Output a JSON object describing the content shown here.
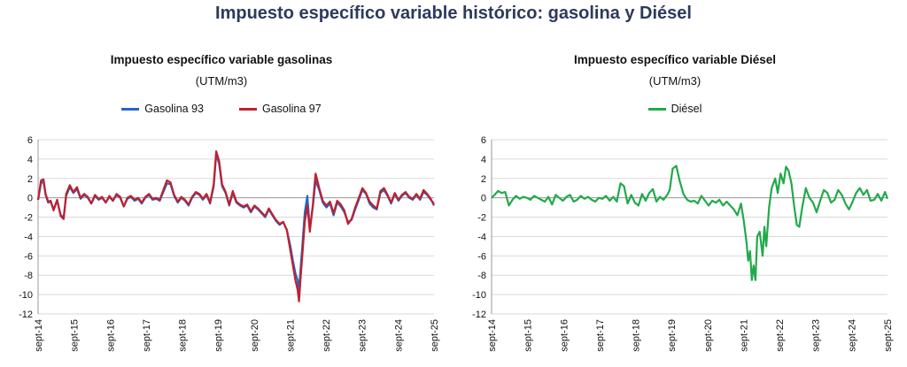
{
  "title": "Impuesto específico variable histórico: gasolina y Diésel",
  "chart_data": [
    {
      "type": "line",
      "title": "Impuesto específico variable gasolinas",
      "subtitle": "(UTM/m3)",
      "xlabel": "",
      "ylabel": "",
      "x_ticks": [
        "sept-14",
        "sept-15",
        "sept-16",
        "sept-17",
        "sept-18",
        "sept-19",
        "sept-20",
        "sept-21",
        "sept-22",
        "sept-23",
        "sept-24",
        "sept-25"
      ],
      "xlim": [
        2014.67,
        2025.67
      ],
      "ylim": [
        -12,
        6
      ],
      "y_ticks": [
        6,
        4,
        2,
        0,
        -2,
        -4,
        -6,
        -8,
        -10,
        -12
      ],
      "grid": true,
      "legend_position": "top",
      "series": [
        {
          "name": "Gasolina 93",
          "color": "#2166c4",
          "x": [
            2014.67,
            2014.75,
            2014.82,
            2014.88,
            2014.95,
            2015.02,
            2015.1,
            2015.2,
            2015.3,
            2015.38,
            2015.45,
            2015.55,
            2015.65,
            2015.75,
            2015.85,
            2015.95,
            2016.05,
            2016.15,
            2016.25,
            2016.35,
            2016.45,
            2016.55,
            2016.65,
            2016.75,
            2016.85,
            2016.95,
            2017.05,
            2017.15,
            2017.25,
            2017.35,
            2017.45,
            2017.55,
            2017.65,
            2017.75,
            2017.85,
            2017.95,
            2018.05,
            2018.15,
            2018.25,
            2018.35,
            2018.45,
            2018.55,
            2018.65,
            2018.75,
            2018.85,
            2018.95,
            2019.05,
            2019.15,
            2019.25,
            2019.35,
            2019.45,
            2019.55,
            2019.62,
            2019.7,
            2019.78,
            2019.88,
            2019.98,
            2020.08,
            2020.18,
            2020.28,
            2020.38,
            2020.48,
            2020.58,
            2020.68,
            2020.78,
            2020.88,
            2020.98,
            2021.08,
            2021.18,
            2021.28,
            2021.38,
            2021.48,
            2021.58,
            2021.68,
            2021.75,
            2021.82,
            2021.88,
            2021.92,
            2021.97,
            2022.02,
            2022.08,
            2022.15,
            2022.22,
            2022.3,
            2022.38,
            2022.48,
            2022.58,
            2022.68,
            2022.78,
            2022.88,
            2022.98,
            2023.08,
            2023.18,
            2023.28,
            2023.38,
            2023.48,
            2023.58,
            2023.68,
            2023.78,
            2023.88,
            2023.98,
            2024.08,
            2024.18,
            2024.28,
            2024.38,
            2024.48,
            2024.58,
            2024.68,
            2024.78,
            2024.88,
            2024.98,
            2025.08,
            2025.18,
            2025.28,
            2025.38,
            2025.48,
            2025.58,
            2025.67
          ],
          "y": [
            -0.2,
            1.5,
            1.7,
            0.3,
            -0.5,
            -0.4,
            -1.2,
            -0.3,
            -1.8,
            -2.0,
            0.2,
            1.1,
            0.5,
            0.9,
            -0.1,
            0.3,
            0.0,
            -0.6,
            0.2,
            -0.2,
            0.0,
            -0.5,
            0.1,
            -0.3,
            0.3,
            0.0,
            -0.9,
            -0.1,
            0.1,
            -0.3,
            -0.1,
            -0.6,
            0.0,
            0.3,
            -0.2,
            -0.1,
            -0.3,
            0.6,
            1.5,
            1.4,
            0.2,
            -0.5,
            0.0,
            -0.3,
            -0.8,
            0.0,
            0.5,
            0.3,
            -0.2,
            0.3,
            -0.6,
            1.2,
            4.5,
            3.5,
            1.2,
            0.5,
            -0.8,
            0.5,
            -0.5,
            -0.8,
            -1.0,
            -0.8,
            -1.5,
            -0.9,
            -1.2,
            -1.6,
            -2.0,
            -1.2,
            -1.8,
            -2.4,
            -2.8,
            -2.5,
            -3.3,
            -5.0,
            -6.5,
            -7.8,
            -8.5,
            -9.5,
            -7.0,
            -4.5,
            -1.5,
            0.2,
            -3.2,
            -1.0,
            1.8,
            0.8,
            -0.5,
            -1.0,
            -0.6,
            -1.8,
            -0.5,
            -0.9,
            -1.5,
            -2.5,
            -2.3,
            -1.2,
            -0.2,
            0.8,
            0.4,
            -0.6,
            -1.0,
            -1.2,
            0.5,
            0.8,
            0.2,
            -0.6,
            0.4,
            -0.3,
            0.2,
            0.5,
            0.0,
            -0.2,
            0.3,
            -0.2,
            0.6,
            0.3,
            -0.2,
            -0.6
          ]
        },
        {
          "name": "Gasolina 97",
          "color": "#c0202e",
          "x": [
            2014.67,
            2014.75,
            2014.82,
            2014.88,
            2014.95,
            2015.02,
            2015.1,
            2015.2,
            2015.3,
            2015.38,
            2015.45,
            2015.55,
            2015.65,
            2015.75,
            2015.85,
            2015.95,
            2016.05,
            2016.15,
            2016.25,
            2016.35,
            2016.45,
            2016.55,
            2016.65,
            2016.75,
            2016.85,
            2016.95,
            2017.05,
            2017.15,
            2017.25,
            2017.35,
            2017.45,
            2017.55,
            2017.65,
            2017.75,
            2017.85,
            2017.95,
            2018.05,
            2018.15,
            2018.25,
            2018.35,
            2018.45,
            2018.55,
            2018.65,
            2018.75,
            2018.85,
            2018.95,
            2019.05,
            2019.15,
            2019.25,
            2019.35,
            2019.45,
            2019.55,
            2019.62,
            2019.7,
            2019.78,
            2019.88,
            2019.98,
            2020.08,
            2020.18,
            2020.28,
            2020.38,
            2020.48,
            2020.58,
            2020.68,
            2020.78,
            2020.88,
            2020.98,
            2021.08,
            2021.18,
            2021.28,
            2021.38,
            2021.48,
            2021.58,
            2021.68,
            2021.75,
            2021.82,
            2021.88,
            2021.92,
            2021.97,
            2022.02,
            2022.08,
            2022.15,
            2022.22,
            2022.3,
            2022.38,
            2022.48,
            2022.58,
            2022.68,
            2022.78,
            2022.88,
            2022.98,
            2023.08,
            2023.18,
            2023.28,
            2023.38,
            2023.48,
            2023.58,
            2023.68,
            2023.78,
            2023.88,
            2023.98,
            2024.08,
            2024.18,
            2024.28,
            2024.38,
            2024.48,
            2024.58,
            2024.68,
            2024.78,
            2024.88,
            2024.98,
            2025.08,
            2025.18,
            2025.28,
            2025.38,
            2025.48,
            2025.58,
            2025.67
          ],
          "y": [
            -0.2,
            1.8,
            1.9,
            0.4,
            -0.4,
            -0.3,
            -1.3,
            -0.2,
            -1.9,
            -2.2,
            0.4,
            1.3,
            0.6,
            1.1,
            0.0,
            0.4,
            0.1,
            -0.6,
            0.3,
            -0.1,
            0.1,
            -0.5,
            0.2,
            -0.3,
            0.4,
            0.1,
            -0.9,
            0.0,
            0.2,
            -0.2,
            0.0,
            -0.5,
            0.1,
            0.4,
            -0.1,
            0.0,
            -0.2,
            0.8,
            1.8,
            1.6,
            0.3,
            -0.4,
            0.1,
            -0.2,
            -0.7,
            0.1,
            0.6,
            0.4,
            -0.1,
            0.4,
            -0.5,
            1.4,
            4.8,
            3.8,
            1.4,
            0.6,
            -0.7,
            0.7,
            -0.4,
            -0.7,
            -0.9,
            -0.7,
            -1.4,
            -0.8,
            -1.1,
            -1.5,
            -1.9,
            -1.1,
            -1.7,
            -2.3,
            -2.7,
            -2.5,
            -3.3,
            -5.5,
            -7.0,
            -8.5,
            -9.5,
            -10.7,
            -8.0,
            -5.5,
            -2.5,
            -0.8,
            -3.5,
            -0.8,
            2.5,
            1.0,
            -0.3,
            -0.8,
            -0.4,
            -1.6,
            -0.3,
            -0.7,
            -1.3,
            -2.7,
            -2.2,
            -1.0,
            0.0,
            1.0,
            0.5,
            -0.4,
            -0.8,
            -1.1,
            0.7,
            1.0,
            0.3,
            -0.5,
            0.5,
            -0.2,
            0.3,
            0.6,
            0.1,
            -0.1,
            0.4,
            -0.1,
            0.8,
            0.4,
            -0.1,
            -0.8
          ]
        }
      ]
    },
    {
      "type": "line",
      "title": "Impuesto específico variable Diésel",
      "subtitle": "(UTM/m3)",
      "xlabel": "",
      "ylabel": "",
      "x_ticks": [
        "sept-14",
        "sept-15",
        "sept-16",
        "sept-17",
        "sept-18",
        "sept-19",
        "sept-20",
        "sept-21",
        "sept-22",
        "sept-23",
        "sept-24",
        "sept-25"
      ],
      "xlim": [
        2014.67,
        2025.67
      ],
      "ylim": [
        -12,
        6
      ],
      "y_ticks": [
        6,
        4,
        2,
        0,
        -2,
        -4,
        -6,
        -8,
        -10,
        -12
      ],
      "grid": true,
      "legend_position": "top",
      "series": [
        {
          "name": "Diésel",
          "color": "#22a94a",
          "x": [
            2014.67,
            2014.75,
            2014.85,
            2014.95,
            2015.05,
            2015.15,
            2015.25,
            2015.35,
            2015.45,
            2015.55,
            2015.65,
            2015.75,
            2015.85,
            2015.95,
            2016.05,
            2016.15,
            2016.25,
            2016.35,
            2016.45,
            2016.55,
            2016.65,
            2016.75,
            2016.85,
            2016.95,
            2017.05,
            2017.15,
            2017.25,
            2017.35,
            2017.45,
            2017.55,
            2017.65,
            2017.75,
            2017.85,
            2017.95,
            2018.05,
            2018.15,
            2018.25,
            2018.35,
            2018.45,
            2018.55,
            2018.65,
            2018.75,
            2018.85,
            2018.95,
            2019.05,
            2019.15,
            2019.25,
            2019.35,
            2019.45,
            2019.55,
            2019.62,
            2019.7,
            2019.8,
            2019.9,
            2020.0,
            2020.1,
            2020.2,
            2020.3,
            2020.4,
            2020.5,
            2020.6,
            2020.7,
            2020.8,
            2020.9,
            2021.0,
            2021.1,
            2021.2,
            2021.3,
            2021.4,
            2021.5,
            2021.6,
            2021.68,
            2021.75,
            2021.8,
            2021.85,
            2021.9,
            2021.95,
            2022.0,
            2022.05,
            2022.12,
            2022.2,
            2022.25,
            2022.3,
            2022.38,
            2022.45,
            2022.55,
            2022.62,
            2022.7,
            2022.78,
            2022.85,
            2022.92,
            2023.0,
            2023.08,
            2023.15,
            2023.22,
            2023.3,
            2023.4,
            2023.5,
            2023.6,
            2023.7,
            2023.8,
            2023.9,
            2024.0,
            2024.1,
            2024.2,
            2024.3,
            2024.4,
            2024.5,
            2024.6,
            2024.7,
            2024.8,
            2024.9,
            2025.0,
            2025.1,
            2025.2,
            2025.3,
            2025.4,
            2025.5,
            2025.6,
            2025.67
          ],
          "y": [
            0.0,
            0.3,
            0.7,
            0.5,
            0.6,
            -0.8,
            -0.2,
            0.2,
            -0.1,
            0.1,
            0.0,
            -0.2,
            0.2,
            0.0,
            -0.2,
            -0.4,
            0.1,
            -0.7,
            0.3,
            0.0,
            -0.3,
            0.1,
            0.3,
            -0.4,
            -0.2,
            0.2,
            -0.1,
            0.1,
            -0.2,
            -0.4,
            0.0,
            -0.1,
            0.2,
            -0.3,
            0.1,
            -0.4,
            1.5,
            1.2,
            -0.6,
            0.3,
            -0.5,
            -0.8,
            0.4,
            -0.3,
            0.5,
            0.9,
            -0.4,
            0.1,
            -0.2,
            0.3,
            0.8,
            3.0,
            3.3,
            1.7,
            0.4,
            -0.2,
            -0.4,
            -0.3,
            -0.6,
            0.2,
            -0.3,
            -0.8,
            -0.3,
            -0.5,
            -0.2,
            -0.8,
            -0.4,
            -0.8,
            -1.2,
            -1.8,
            -0.6,
            -2.5,
            -4.5,
            -6.5,
            -5.5,
            -8.5,
            -7.0,
            -8.5,
            -4.0,
            -3.5,
            -6.0,
            -3.0,
            -5.0,
            -1.0,
            1.0,
            2.0,
            0.5,
            2.5,
            1.5,
            3.2,
            2.8,
            1.5,
            -1.0,
            -2.8,
            -3.0,
            -1.0,
            1.0,
            0.0,
            -0.5,
            -1.5,
            -0.3,
            0.8,
            0.5,
            -0.5,
            -0.2,
            0.8,
            0.3,
            -0.6,
            -1.2,
            -0.4,
            0.5,
            1.0,
            0.3,
            0.8,
            -0.3,
            -0.2,
            0.4,
            -0.3,
            0.6,
            -0.1
          ]
        }
      ]
    }
  ]
}
